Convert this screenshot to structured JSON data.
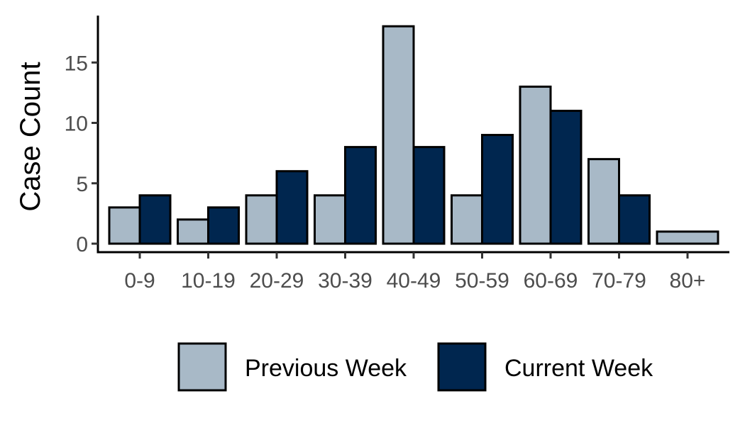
{
  "chart_data": {
    "type": "bar",
    "categories": [
      "0-9",
      "10-19",
      "20-29",
      "30-39",
      "40-49",
      "50-59",
      "60-69",
      "70-79",
      "80+"
    ],
    "series": [
      {
        "name": "Previous Week",
        "values": [
          3,
          2,
          4,
          4,
          18,
          4,
          13,
          7,
          1
        ],
        "color": "#a8b9c7"
      },
      {
        "name": "Current Week",
        "values": [
          4,
          3,
          6,
          8,
          8,
          9,
          11,
          4,
          0
        ],
        "color": "#00264f"
      }
    ],
    "title": "",
    "xlabel": "",
    "ylabel": "Case Count",
    "ylim": [
      0,
      18.5
    ],
    "yticks": [
      0,
      5,
      10,
      15
    ],
    "grid": false,
    "legend_position": "bottom",
    "bar_outline_color": "#000000"
  }
}
